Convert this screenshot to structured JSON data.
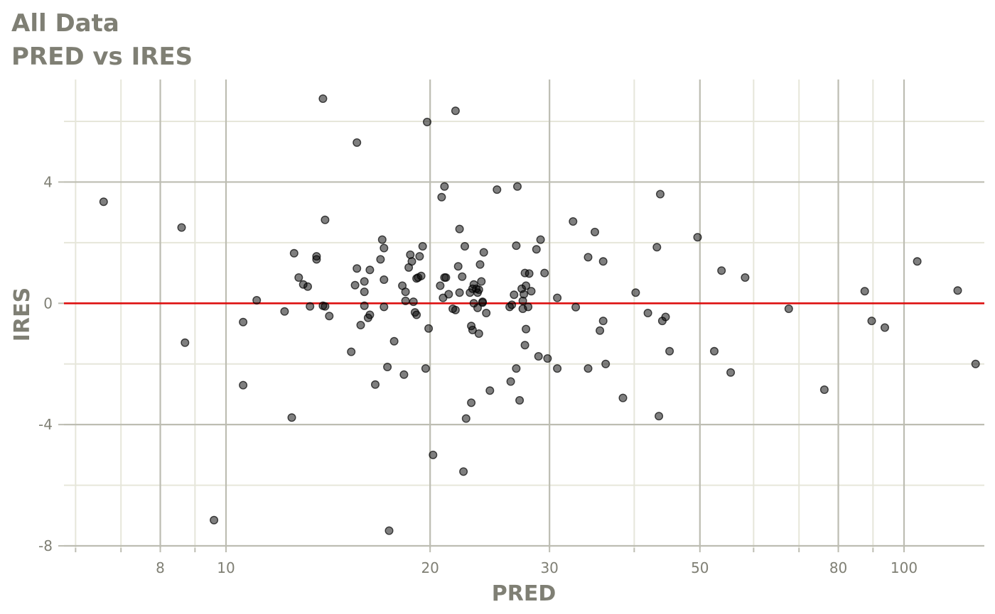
{
  "chart_data": {
    "type": "scatter",
    "title": "All Data",
    "subtitle": "PRED vs IRES",
    "xlabel": "PRED",
    "ylabel": "IRES",
    "x_scale": "log10",
    "xlim": [
      5.7,
      135
    ],
    "ylim": [
      -8,
      6.9
    ],
    "x_major_ticks": [
      8,
      10,
      20,
      30,
      50,
      80,
      100
    ],
    "x_tick_labels": [
      "8",
      "10",
      "20",
      "30",
      "50",
      "80",
      "100"
    ],
    "x_minor_ticks": [
      6,
      7,
      9,
      40,
      60,
      70,
      90
    ],
    "y_major_ticks": [
      4,
      0,
      -4,
      -8
    ],
    "y_tick_labels": [
      "4",
      "0",
      "-4",
      "-8"
    ],
    "y_minor_ticks": [
      6,
      2,
      -2,
      -6
    ],
    "grid": true,
    "reference_line": {
      "y": 0,
      "color": "#dd1111"
    },
    "point_color": "#000000",
    "points": [
      [
        6.6,
        3.35
      ],
      [
        8.6,
        2.5
      ],
      [
        8.7,
        -1.3
      ],
      [
        9.6,
        -7.15
      ],
      [
        10.6,
        -0.62
      ],
      [
        10.6,
        -2.7
      ],
      [
        11.1,
        0.1
      ],
      [
        12.2,
        -0.27
      ],
      [
        12.6,
        1.65
      ],
      [
        12.5,
        -3.77
      ],
      [
        12.8,
        0.85
      ],
      [
        13.0,
        0.62
      ],
      [
        13.2,
        0.55
      ],
      [
        13.3,
        -0.1
      ],
      [
        13.6,
        1.45
      ],
      [
        13.6,
        1.55
      ],
      [
        13.9,
        6.75
      ],
      [
        13.9,
        -0.08
      ],
      [
        14.0,
        -0.1
      ],
      [
        14.0,
        2.75
      ],
      [
        14.2,
        -0.42
      ],
      [
        15.3,
        -1.6
      ],
      [
        15.5,
        0.6
      ],
      [
        15.6,
        5.3
      ],
      [
        15.6,
        1.15
      ],
      [
        15.8,
        -0.72
      ],
      [
        16.0,
        0.38
      ],
      [
        16.0,
        0.72
      ],
      [
        16.0,
        -0.08
      ],
      [
        16.2,
        -0.48
      ],
      [
        16.3,
        1.1
      ],
      [
        16.3,
        -0.38
      ],
      [
        16.6,
        -2.68
      ],
      [
        16.9,
        1.45
      ],
      [
        17.0,
        2.1
      ],
      [
        17.1,
        1.82
      ],
      [
        17.1,
        -0.12
      ],
      [
        17.1,
        0.78
      ],
      [
        17.3,
        -2.1
      ],
      [
        17.4,
        -7.5
      ],
      [
        17.7,
        -1.25
      ],
      [
        18.2,
        0.58
      ],
      [
        18.3,
        -2.35
      ],
      [
        18.4,
        0.08
      ],
      [
        18.4,
        0.38
      ],
      [
        18.6,
        1.18
      ],
      [
        18.7,
        1.6
      ],
      [
        18.8,
        1.38
      ],
      [
        18.9,
        0.05
      ],
      [
        19.0,
        -0.3
      ],
      [
        19.1,
        0.82
      ],
      [
        19.1,
        -0.38
      ],
      [
        19.2,
        0.85
      ],
      [
        19.3,
        1.55
      ],
      [
        19.4,
        0.9
      ],
      [
        19.5,
        1.88
      ],
      [
        19.7,
        -2.15
      ],
      [
        19.8,
        5.98
      ],
      [
        19.9,
        -0.83
      ],
      [
        20.2,
        -5.0
      ],
      [
        20.7,
        0.58
      ],
      [
        20.8,
        3.5
      ],
      [
        20.9,
        0.18
      ],
      [
        21.0,
        3.85
      ],
      [
        21.0,
        0.85
      ],
      [
        21.1,
        0.85
      ],
      [
        21.3,
        0.3
      ],
      [
        21.6,
        -0.18
      ],
      [
        21.8,
        6.35
      ],
      [
        21.8,
        -0.22
      ],
      [
        22.0,
        1.22
      ],
      [
        22.1,
        0.35
      ],
      [
        22.1,
        2.45
      ],
      [
        22.3,
        0.88
      ],
      [
        22.4,
        -5.55
      ],
      [
        22.5,
        1.88
      ],
      [
        22.6,
        -3.8
      ],
      [
        22.9,
        0.35
      ],
      [
        23.0,
        -3.28
      ],
      [
        23.0,
        -0.75
      ],
      [
        23.1,
        -0.88
      ],
      [
        23.1,
        0.48
      ],
      [
        23.2,
        0.62
      ],
      [
        23.2,
        0.0
      ],
      [
        23.4,
        0.48
      ],
      [
        23.5,
        0.35
      ],
      [
        23.5,
        -0.15
      ],
      [
        23.6,
        0.45
      ],
      [
        23.6,
        -1.0
      ],
      [
        23.7,
        1.28
      ],
      [
        23.8,
        0.72
      ],
      [
        23.9,
        0.02
      ],
      [
        23.9,
        0.05
      ],
      [
        24.0,
        1.68
      ],
      [
        24.2,
        -0.32
      ],
      [
        24.5,
        -2.88
      ],
      [
        25.1,
        3.75
      ],
      [
        26.2,
        -0.12
      ],
      [
        26.3,
        -2.58
      ],
      [
        26.4,
        -0.05
      ],
      [
        26.6,
        0.28
      ],
      [
        26.8,
        1.9
      ],
      [
        26.8,
        -2.15
      ],
      [
        26.9,
        3.85
      ],
      [
        27.1,
        -3.2
      ],
      [
        27.3,
        0.48
      ],
      [
        27.4,
        0.08
      ],
      [
        27.4,
        -0.18
      ],
      [
        27.5,
        0.3
      ],
      [
        27.6,
        -1.38
      ],
      [
        27.6,
        1.0
      ],
      [
        27.7,
        0.58
      ],
      [
        27.7,
        -0.85
      ],
      [
        27.9,
        -0.12
      ],
      [
        28.0,
        0.98
      ],
      [
        28.2,
        0.4
      ],
      [
        28.7,
        1.78
      ],
      [
        28.9,
        -1.75
      ],
      [
        29.1,
        2.1
      ],
      [
        29.5,
        1.0
      ],
      [
        29.8,
        -1.82
      ],
      [
        30.8,
        0.18
      ],
      [
        30.8,
        -2.15
      ],
      [
        32.5,
        2.7
      ],
      [
        32.8,
        -0.13
      ],
      [
        34.2,
        1.52
      ],
      [
        34.2,
        -2.15
      ],
      [
        35.0,
        2.35
      ],
      [
        35.6,
        -0.9
      ],
      [
        36.0,
        -0.58
      ],
      [
        36.0,
        1.38
      ],
      [
        36.3,
        -2.0
      ],
      [
        38.5,
        -3.12
      ],
      [
        40.2,
        0.35
      ],
      [
        41.9,
        -0.32
      ],
      [
        43.2,
        1.85
      ],
      [
        43.5,
        -3.72
      ],
      [
        43.7,
        3.6
      ],
      [
        44.0,
        -0.58
      ],
      [
        44.5,
        -0.45
      ],
      [
        45.1,
        -1.58
      ],
      [
        49.6,
        2.18
      ],
      [
        52.5,
        -1.58
      ],
      [
        53.8,
        1.08
      ],
      [
        55.5,
        -2.28
      ],
      [
        58.3,
        0.85
      ],
      [
        67.6,
        -0.18
      ],
      [
        76.3,
        -2.85
      ],
      [
        87.5,
        0.4
      ],
      [
        89.6,
        -0.58
      ],
      [
        93.7,
        -0.8
      ],
      [
        104.6,
        1.38
      ],
      [
        120.0,
        0.42
      ],
      [
        127.5,
        -2.0
      ]
    ]
  }
}
